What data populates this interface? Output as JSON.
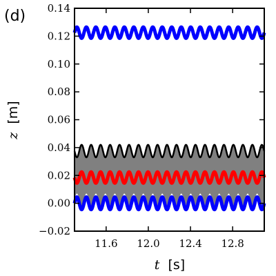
{
  "panel_label": "(d)",
  "chart_data": {
    "type": "line",
    "panel": "(d)",
    "xlabel_symbol": "t",
    "xlabel_unit": "[s]",
    "ylabel_symbol": "z",
    "ylabel_unit": "[m]",
    "xlim": [
      11.3,
      13.1
    ],
    "ylim": [
      -0.02,
      0.14
    ],
    "x_ticks": [
      11.6,
      12.0,
      12.4,
      12.8
    ],
    "x_tick_labels": [
      "11.6",
      "12.0",
      "12.4",
      "12.8"
    ],
    "y_ticks": [
      -0.02,
      0.0,
      0.02,
      0.04,
      0.06,
      0.08,
      0.1,
      0.12,
      0.14
    ],
    "y_tick_labels": [
      "−0.02",
      "0.00",
      "0.02",
      "0.04",
      "0.06",
      "0.08",
      "0.10",
      "0.12",
      "0.14"
    ],
    "grid": false,
    "legend": "none",
    "series": [
      {
        "color": "#0000ff",
        "style": "thick",
        "mean": 0.1225,
        "amplitude": 0.004,
        "period": 0.09,
        "phase": 0.0
      },
      {
        "color": "#000000",
        "style": "thin",
        "mean": 0.0375,
        "amplitude": 0.0045,
        "period": 0.09,
        "phase": 3.1416
      },
      {
        "color": "#ff0000",
        "style": "thick",
        "mean": 0.0185,
        "amplitude": 0.004,
        "period": 0.09,
        "phase": 3.1416
      },
      {
        "color": "#0000ff",
        "style": "thick",
        "mean": 0.0,
        "amplitude": 0.0045,
        "period": 0.09,
        "phase": 0.0
      }
    ],
    "fill_between": {
      "color": "#808080",
      "upper": {
        "mean": 0.0375,
        "amplitude": 0.0045,
        "phase": 3.1416
      },
      "lower": {
        "mean": 0.0025,
        "amplitude": 0.0045,
        "phase": 0.0
      },
      "period": 0.09
    }
  }
}
